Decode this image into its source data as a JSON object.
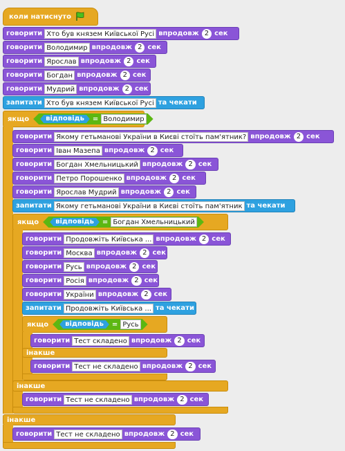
{
  "hat": {
    "label": "коли натиснуто",
    "icon": "green-flag-icon"
  },
  "words": {
    "say": "говорити",
    "for": "впродовж",
    "sec": "сек",
    "ask": "запитати",
    "wait": "та чекати",
    "if": "якщо",
    "else": "інакше",
    "answer": "відповідь",
    "eq": "="
  },
  "b1": {
    "t": "Хто був князем Київської Русі",
    "n": "2"
  },
  "b2": {
    "t": "Володимир",
    "n": "2"
  },
  "b3": {
    "t": "Ярослав",
    "n": "2"
  },
  "b4": {
    "t": "Богдан",
    "n": "2"
  },
  "b5": {
    "t": "Мудрий",
    "n": "2"
  },
  "a1": {
    "t": "Хто був князем Київської Русі"
  },
  "if1": {
    "v": "Володимир"
  },
  "c1": {
    "t": "Якому гетьманові України в Києві стоїть пам'ятник?",
    "n": "2"
  },
  "c2": {
    "t": "Іван Мазепа",
    "n": "2"
  },
  "c3": {
    "t": "Богдан Хмельницький",
    "n": "2"
  },
  "c4": {
    "t": "Петро Порошенко",
    "n": "2"
  },
  "c5": {
    "t": "Ярослав Мудрий",
    "n": "2"
  },
  "a2": {
    "t": "Якому гетьманові України в Києві стоїть пам'ятник"
  },
  "if2": {
    "v": "Богдан Хмельницький"
  },
  "d1": {
    "t": "Продовжіть Київська ...",
    "n": "2"
  },
  "d2": {
    "t": "Москва",
    "n": "2"
  },
  "d3": {
    "t": "Русь",
    "n": "2"
  },
  "d4": {
    "t": "Росія",
    "n": "2"
  },
  "d5": {
    "t": "України",
    "n": "2"
  },
  "a3": {
    "t": "Продовжіть Київська ..."
  },
  "if3": {
    "v": "Русь"
  },
  "e1": {
    "t": "Тест складено",
    "n": "2"
  },
  "e2": {
    "t": "Тест не складено",
    "n": "2"
  },
  "f1": {
    "t": "Тест не складено",
    "n": "2"
  },
  "g1": {
    "t": "Тест не складено",
    "n": "2"
  }
}
